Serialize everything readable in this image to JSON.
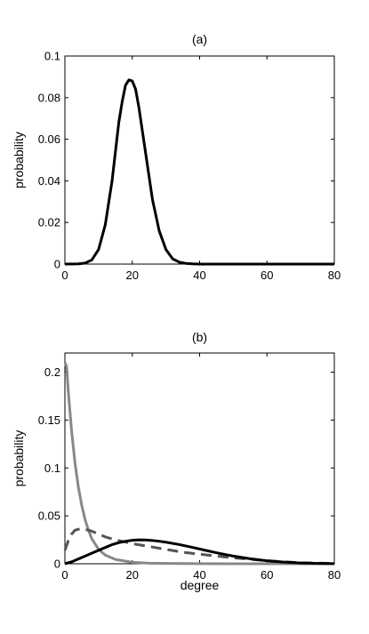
{
  "chart_data": [
    {
      "type": "line",
      "title": "(a)",
      "xlabel": "",
      "ylabel": "probability",
      "xlim": [
        0,
        80
      ],
      "ylim": [
        0,
        0.1
      ],
      "xticks": [
        "0",
        "20",
        "40",
        "60",
        "80"
      ],
      "yticks": [
        "0",
        "0.02",
        "0.04",
        "0.06",
        "0.08",
        "0.1"
      ],
      "grid": false,
      "series": [
        {
          "color": "#000000",
          "dash": "solid",
          "x": [
            0,
            4,
            6,
            8,
            10,
            12,
            14,
            16,
            17,
            18,
            19,
            20,
            21,
            22,
            24,
            26,
            28,
            30,
            32,
            34,
            36,
            38,
            40,
            45,
            50,
            60,
            70,
            80
          ],
          "y": [
            0,
            0.0001,
            0.0005,
            0.002,
            0.007,
            0.019,
            0.04,
            0.068,
            0.078,
            0.086,
            0.0885,
            0.088,
            0.084,
            0.075,
            0.053,
            0.031,
            0.016,
            0.007,
            0.0025,
            0.0009,
            0.0003,
            0.0001,
            0,
            0,
            0,
            0,
            0,
            0
          ]
        }
      ]
    },
    {
      "type": "line",
      "title": "(b)",
      "xlabel": "degree",
      "ylabel": "probability",
      "xlim": [
        0,
        80
      ],
      "ylim": [
        0,
        0.22
      ],
      "xticks": [
        "0",
        "20",
        "40",
        "60",
        "80"
      ],
      "yticks": [
        "0",
        "0.05",
        "0.1",
        "0.15",
        "0.2"
      ],
      "grid": false,
      "series": [
        {
          "color": "#888888",
          "dash": "solid",
          "x": [
            0,
            0.5,
            1,
            2,
            3,
            4,
            5,
            6,
            7,
            8,
            10,
            12,
            15,
            20,
            25,
            30,
            40,
            50,
            60,
            80
          ],
          "y": [
            0.21,
            0.206,
            0.18,
            0.138,
            0.105,
            0.08,
            0.061,
            0.046,
            0.035,
            0.026,
            0.015,
            0.009,
            0.0045,
            0.0015,
            0.0006,
            0.0003,
            0.0001,
            0,
            0,
            0
          ]
        },
        {
          "color": "#555555",
          "dash": "dashed",
          "x": [
            0,
            1,
            2,
            3,
            4,
            5,
            6,
            8,
            10,
            12,
            15,
            20,
            25,
            30,
            35,
            40,
            45,
            50,
            55,
            60,
            65,
            70,
            80
          ],
          "y": [
            0.014,
            0.024,
            0.031,
            0.035,
            0.036,
            0.0365,
            0.036,
            0.034,
            0.031,
            0.028,
            0.025,
            0.021,
            0.018,
            0.015,
            0.012,
            0.01,
            0.008,
            0.0062,
            0.0046,
            0.0032,
            0.002,
            0.0011,
            0.0003
          ]
        },
        {
          "color": "#000000",
          "dash": "solid",
          "x": [
            0,
            2,
            4,
            6,
            8,
            10,
            12,
            14,
            16,
            18,
            20,
            22,
            24,
            26,
            28,
            30,
            34,
            38,
            42,
            46,
            50,
            55,
            60,
            65,
            70,
            75,
            80
          ],
          "y": [
            0,
            0.002,
            0.005,
            0.008,
            0.011,
            0.014,
            0.017,
            0.02,
            0.022,
            0.0235,
            0.0245,
            0.025,
            0.0248,
            0.0243,
            0.0235,
            0.0225,
            0.02,
            0.017,
            0.0138,
            0.0107,
            0.008,
            0.0052,
            0.0031,
            0.0017,
            0.0008,
            0.0003,
            0.0001
          ]
        }
      ]
    }
  ]
}
